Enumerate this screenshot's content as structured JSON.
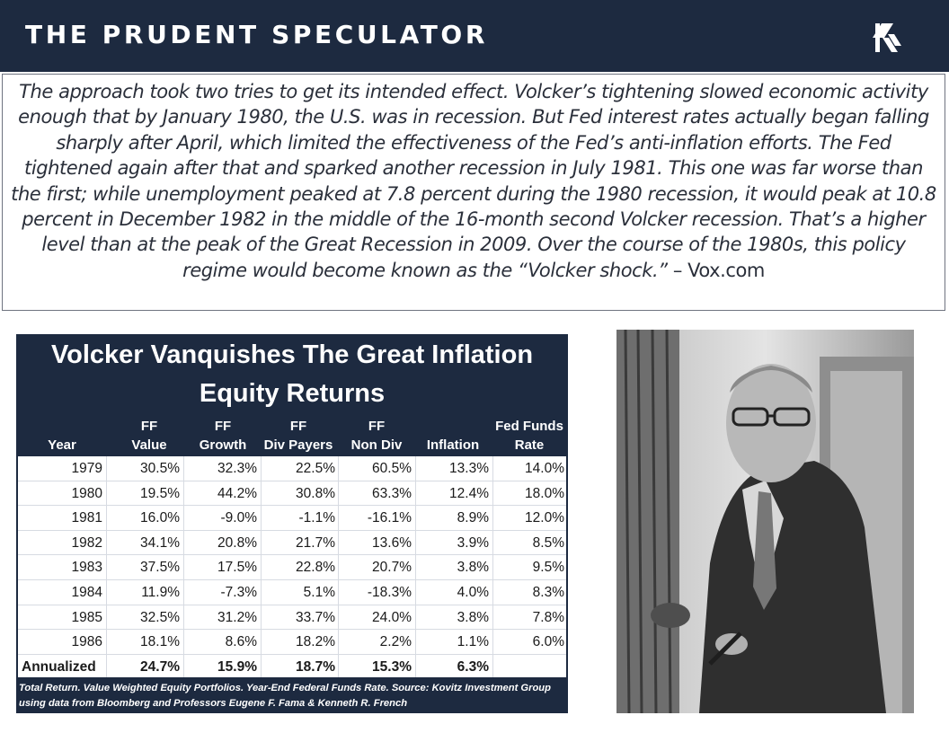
{
  "header": {
    "brand": "THE PRUDENT SPECULATOR",
    "logo_icon": "kovitz-k-logo-icon",
    "background": "#1d2a40"
  },
  "quote": {
    "text": "The approach took two tries to get its intended effect. Volcker’s tightening slowed economic activity enough that by January 1980, the U.S. was in recession. But Fed interest rates actually began falling sharply after April, which limited the effectiveness of the Fed’s anti-inflation efforts. The Fed tightened again after that and sparked another recession in July 1981. This one was far worse than the first; while unemployment peaked at 7.8 percent during the 1980 recession, it would peak at 10.8 percent in December 1982 in the middle of the 16-month second Volcker recession. That’s a higher level than at the peak of the Great Recession in 2009. Over the course of the 1980s, this policy regime would become known as the “Volcker shock.”",
    "source": " – Vox.com"
  },
  "table": {
    "title": "Volcker Vanquishes The Great Inflation",
    "subtitle": "Equity Returns",
    "columns": [
      {
        "line1": "",
        "line2": "Year"
      },
      {
        "line1": "FF",
        "line2": "Value"
      },
      {
        "line1": "FF",
        "line2": "Growth"
      },
      {
        "line1": "FF",
        "line2": "Div Payers"
      },
      {
        "line1": "FF",
        "line2": "Non Div"
      },
      {
        "line1": "",
        "line2": "Inflation"
      },
      {
        "line1": "Fed Funds",
        "line2": "Rate"
      }
    ],
    "rows": [
      [
        "1979",
        "30.5%",
        "32.3%",
        "22.5%",
        "60.5%",
        "13.3%",
        "14.0%"
      ],
      [
        "1980",
        "19.5%",
        "44.2%",
        "30.8%",
        "63.3%",
        "12.4%",
        "18.0%"
      ],
      [
        "1981",
        "16.0%",
        "-9.0%",
        "-1.1%",
        "-16.1%",
        "8.9%",
        "12.0%"
      ],
      [
        "1982",
        "34.1%",
        "20.8%",
        "21.7%",
        "13.6%",
        "3.9%",
        "8.5%"
      ],
      [
        "1983",
        "37.5%",
        "17.5%",
        "22.8%",
        "20.7%",
        "3.8%",
        "9.5%"
      ],
      [
        "1984",
        "11.9%",
        "-7.3%",
        "5.1%",
        "-18.3%",
        "4.0%",
        "8.3%"
      ],
      [
        "1985",
        "32.5%",
        "31.2%",
        "33.7%",
        "24.0%",
        "3.8%",
        "7.8%"
      ],
      [
        "1986",
        "18.1%",
        "8.6%",
        "18.2%",
        "2.2%",
        "1.1%",
        "6.0%"
      ]
    ],
    "total_row": [
      "Annualized",
      "24.7%",
      "15.9%",
      "18.7%",
      "15.3%",
      "6.3%",
      ""
    ],
    "footnote": "Total Return. Value Weighted Equity Portfolios. Year-End Federal Funds Rate. Source: Kovitz Investment Group using data from Bloomberg and Professors Eugene F. Fama & Kenneth R. French"
  },
  "photo": {
    "icon": "portrait-photo-icon"
  }
}
